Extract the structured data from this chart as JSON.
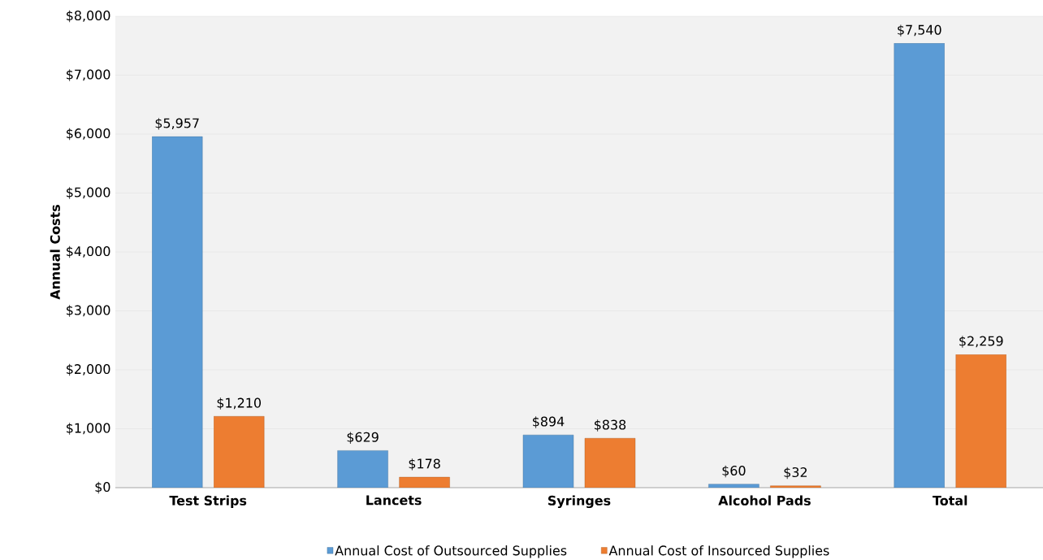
{
  "chart_data": {
    "type": "bar",
    "ylabel": "Annual Costs",
    "categories": [
      "Test Strips",
      "Lancets",
      "Syringes",
      "Alcohol Pads",
      "Total"
    ],
    "series": [
      {
        "name": "Annual Cost of Outsourced Supplies",
        "color": "#5b9bd5",
        "values": [
          5957,
          629,
          894,
          60,
          7540
        ],
        "value_labels": [
          "$5,957",
          "$629",
          "$894",
          "$60",
          "$7,540"
        ]
      },
      {
        "name": "Annual Cost of Insourced Supplies",
        "color": "#ed7d31",
        "values": [
          1210,
          178,
          838,
          32,
          2259
        ],
        "value_labels": [
          "$1,210",
          "$178",
          "$838",
          "$32",
          "$2,259"
        ]
      }
    ],
    "ylim": [
      0,
      8000
    ],
    "yticks": [
      {
        "value": 0,
        "label": "$0"
      },
      {
        "value": 1000,
        "label": "$1,000"
      },
      {
        "value": 2000,
        "label": "$2,000"
      },
      {
        "value": 3000,
        "label": "$3,000"
      },
      {
        "value": 4000,
        "label": "$4,000"
      },
      {
        "value": 5000,
        "label": "$5,000"
      },
      {
        "value": 6000,
        "label": "$6,000"
      },
      {
        "value": 7000,
        "label": "$7,000"
      },
      {
        "value": 8000,
        "label": "$8,000"
      }
    ],
    "grid": "y",
    "legend": "bottom"
  }
}
